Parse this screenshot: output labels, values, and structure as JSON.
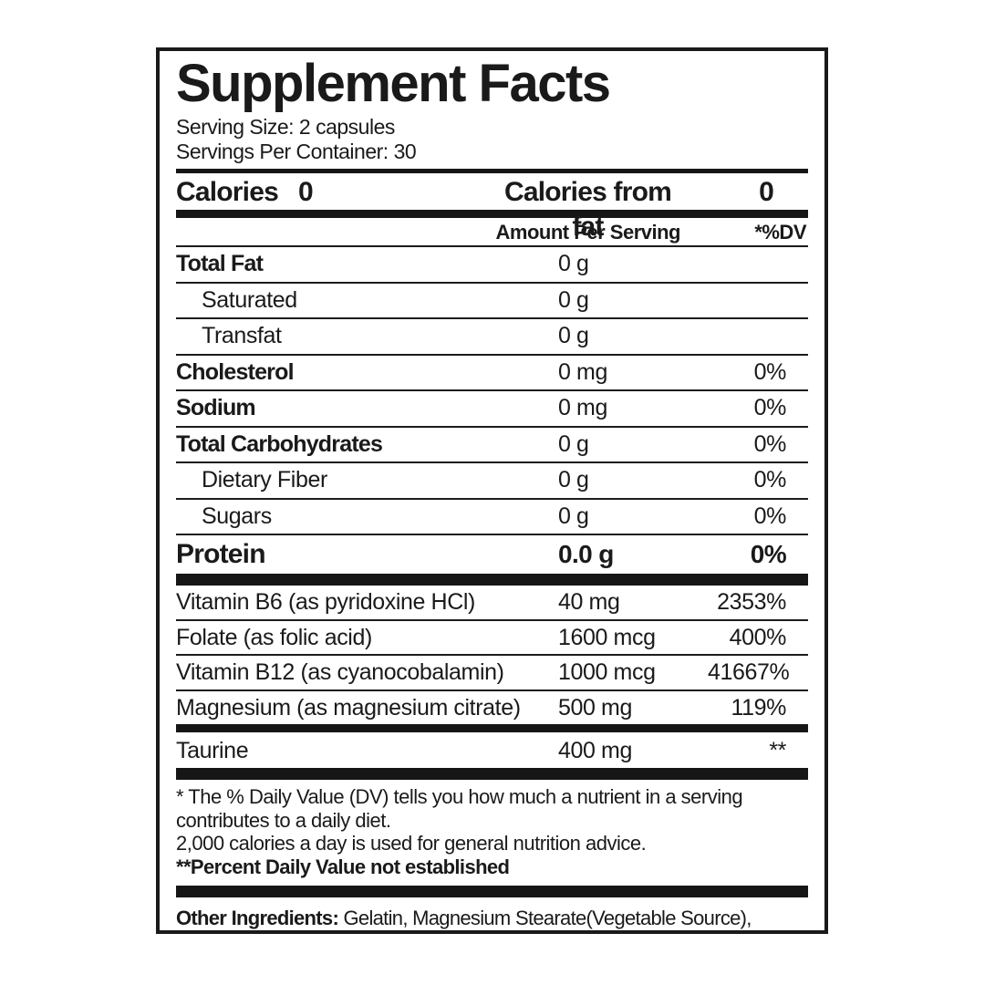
{
  "title": "Supplement Facts",
  "serving": {
    "size": "Serving Size: 2 capsules",
    "per_container": "Servings Per Container: 30"
  },
  "calories": {
    "label": "Calories",
    "value": "0",
    "from_fat_label": "Calories from fat",
    "from_fat_value": "0"
  },
  "columns": {
    "amount_header": "Amount Per Serving",
    "dv_header": "*%DV"
  },
  "nutrients": [
    {
      "name": "Total Fat",
      "amount": "0 g",
      "dv": ""
    },
    {
      "name": "Saturated",
      "amount": "0 g",
      "dv": ""
    },
    {
      "name": "Transfat",
      "amount": "0 g",
      "dv": ""
    },
    {
      "name": "Cholesterol",
      "amount": "0 mg",
      "dv": "0%"
    },
    {
      "name": "Sodium",
      "amount": "0 mg",
      "dv": "0%"
    },
    {
      "name": "Total Carbohydrates",
      "amount": "0 g",
      "dv": "0%"
    },
    {
      "name": "Dietary Fiber",
      "amount": "0 g",
      "dv": "0%"
    },
    {
      "name": "Sugars",
      "amount": "0 g",
      "dv": "0%"
    }
  ],
  "protein": {
    "name": "Protein",
    "amount": "0.0 g",
    "dv": "0%"
  },
  "actives": [
    {
      "name": "Vitamin B6 (as pyridoxine HCl)",
      "amount": "40 mg",
      "dv": "2353%"
    },
    {
      "name": "Folate (as folic acid)",
      "amount": "1600 mcg",
      "dv": "400%"
    },
    {
      "name": "Vitamin B12 (as cyanocobalamin)",
      "amount": "1000 mcg",
      "dv": "41667%"
    },
    {
      "name": "Magnesium (as magnesium citrate)",
      "amount": "500 mg",
      "dv": "119%"
    }
  ],
  "taurine": {
    "name": "Taurine",
    "amount": "400 mg",
    "dv": "**"
  },
  "footnotes": {
    "daily_value": "* The % Daily Value (DV) tells you how much a nutrient in a serving contributes to a daily diet.",
    "calories_advice": "2,000 calories a day is used for general nutrition advice.",
    "not_established": "**Percent Daily Value not established"
  },
  "other_ingredients": {
    "label": "Other Ingredients:",
    "text": "Gelatin, Magnesium Stearate(Vegetable Source), Microcrystalline Cellulose."
  },
  "colors": {
    "ink": "#1a1a1a",
    "background": "#ffffff"
  }
}
